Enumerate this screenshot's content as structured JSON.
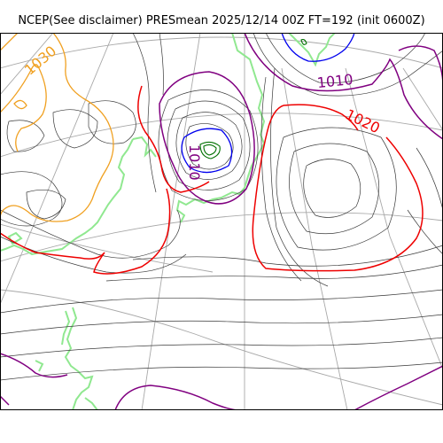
{
  "title": "NCEP(See disclaimer) PRESmean 2025/12/14 00Z FT=192 (init 0600Z)",
  "colors": {
    "isobar_thin": "#3a3a3a",
    "isobar_1010": "#800080",
    "isobar_1020": "#ee0000",
    "isobar_1030": "#f0a020",
    "isobar_1000": "#0000ee",
    "deep_low": "#007000",
    "coastline": "#90e890",
    "graticule": "#a8a8a8",
    "frame": "#000000"
  },
  "contour_labels": [
    {
      "text": "1030",
      "color_key": "isobar_1030"
    },
    {
      "text": "1010",
      "color_key": "isobar_1010"
    },
    {
      "text": "1010",
      "color_key": "isobar_1010"
    },
    {
      "text": "1020",
      "color_key": "isobar_1020"
    }
  ]
}
